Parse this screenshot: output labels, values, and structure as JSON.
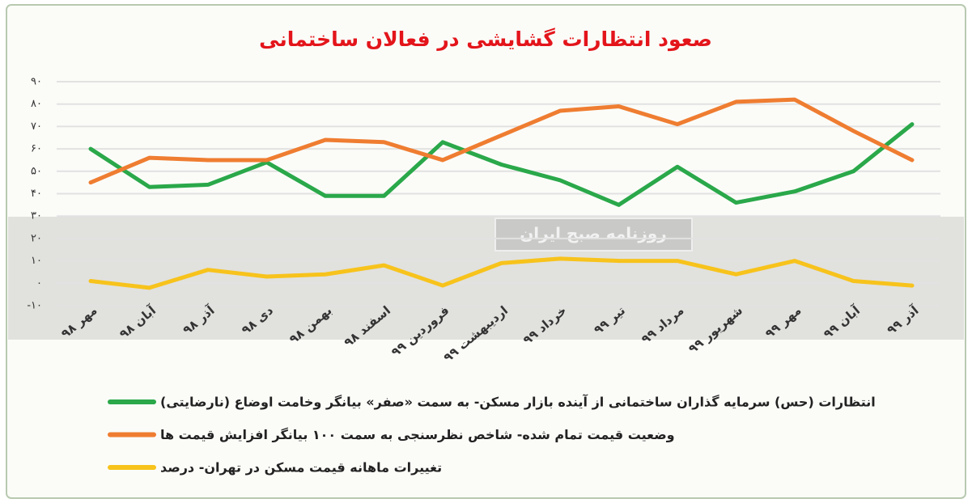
{
  "chart_data": {
    "type": "line",
    "title": "صعود انتظارات گشایشی در فعالان ساختمانی",
    "watermark": "روزنامه صبح ایران",
    "categories": [
      "مهر ۹۸",
      "آبان ۹۸",
      "آذر ۹۸",
      "دی ۹۸",
      "بهمن ۹۸",
      "اسفند ۹۸",
      "فروردین ۹۹",
      "اردیبهشت ۹۹",
      "خرداد ۹۹",
      "تیر ۹۹",
      "مرداد ۹۹",
      "شهریور ۹۹",
      "مهر ۹۹",
      "آبان ۹۹",
      "آذر ۹۹"
    ],
    "series": [
      {
        "name": "انتظارات (حس) سرمایه گذاران ساختمانی از آینده بازار مسکن- به سمت «صفر» بیانگر وخامت اوضاع (نارضایتی)",
        "color": "#2aa84a",
        "values": [
          60,
          43,
          44,
          54,
          39,
          39,
          63,
          53,
          46,
          35,
          52,
          36,
          41,
          50,
          71
        ]
      },
      {
        "name": "وضعیت قیمت تمام شده- شاخص نظرسنجی به سمت ۱۰۰ بیانگر افزایش قیمت ها",
        "color": "#ef7d31",
        "values": [
          45,
          56,
          55,
          55,
          64,
          63,
          55,
          66,
          77,
          79,
          71,
          81,
          82,
          68,
          55
        ]
      },
      {
        "name": "تغییرات ماهانه قیمت مسکن در تهران- درصد",
        "color": "#f7c31c",
        "values": [
          1,
          -2,
          6,
          3,
          4,
          8,
          -1,
          9,
          11,
          10,
          10,
          4,
          10,
          1,
          -1
        ]
      }
    ],
    "ylim": [
      -10,
      90
    ],
    "yticks": [
      {
        "value": -10,
        "label": "-۱۰"
      },
      {
        "value": 0,
        "label": "۰"
      },
      {
        "value": 10,
        "label": "۱۰"
      },
      {
        "value": 20,
        "label": "۲۰"
      },
      {
        "value": 30,
        "label": "۳۰"
      },
      {
        "value": 40,
        "label": "۴۰"
      },
      {
        "value": 50,
        "label": "۵۰"
      },
      {
        "value": 60,
        "label": "۶۰"
      },
      {
        "value": 70,
        "label": "۷۰"
      },
      {
        "value": 80,
        "label": "۸۰"
      },
      {
        "value": 90,
        "label": "۹۰"
      }
    ],
    "grid": true
  }
}
